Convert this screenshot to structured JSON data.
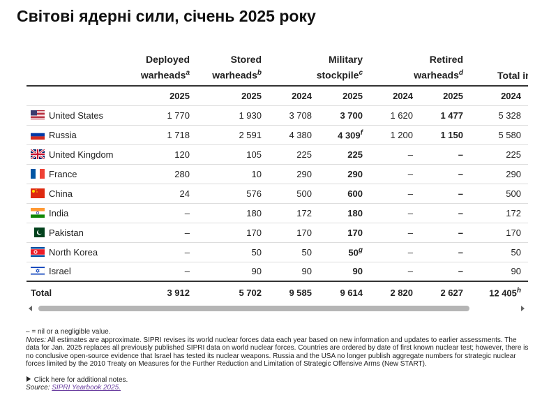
{
  "title": "Світові ядерні сили, січень 2025 року",
  "table": {
    "header": [
      {
        "text": "Deployed warheads",
        "note": "a"
      },
      {
        "text": "Stored warheads",
        "note": "b"
      },
      {
        "text": "Military stockpile",
        "note": "c"
      },
      {
        "text": "Retired warheads",
        "note": "d"
      },
      {
        "text": "Total in"
      }
    ],
    "years": [
      "2025",
      "2025",
      "2024",
      "2025",
      "2024",
      "2025",
      "2024"
    ],
    "rows": [
      {
        "country": "United States",
        "cells": [
          "1 770",
          "1 930",
          "3 708",
          "3 700",
          "1 620",
          "1 477",
          "5 328"
        ]
      },
      {
        "country": "Russia",
        "cells": [
          "1 718",
          "2 591",
          "4 380",
          {
            "text": "4 309",
            "note": "f"
          },
          "1 200",
          "1 150",
          "5 580"
        ]
      },
      {
        "country": "United Kingdom",
        "cells": [
          "120",
          "105",
          "225",
          "225",
          "–",
          "–",
          "225"
        ]
      },
      {
        "country": "France",
        "cells": [
          "280",
          "10",
          "290",
          "290",
          "–",
          "–",
          "290"
        ]
      },
      {
        "country": "China",
        "cells": [
          "24",
          "576",
          "500",
          "600",
          "–",
          "–",
          "500"
        ]
      },
      {
        "country": "India",
        "cells": [
          "–",
          "180",
          "172",
          "180",
          "–",
          "–",
          "172"
        ]
      },
      {
        "country": "Pakistan",
        "cells": [
          "–",
          "170",
          "170",
          "170",
          "–",
          "–",
          "170"
        ]
      },
      {
        "country": "North Korea",
        "cells": [
          "–",
          "50",
          "50",
          {
            "text": "50",
            "note": "g"
          },
          "–",
          "–",
          "50"
        ]
      },
      {
        "country": "Israel",
        "cells": [
          "–",
          "90",
          "90",
          "90",
          "–",
          "–",
          "90"
        ]
      }
    ],
    "total": {
      "label": "Total",
      "cells": [
        "3 912",
        "5 702",
        "9 585",
        "9 614",
        "2 820",
        "2 627",
        {
          "text": "12 405",
          "note": "h"
        }
      ]
    }
  },
  "notes": {
    "nil": "– = nil or a negligible value.",
    "label": "Notes:",
    "text": "All estimates are approximate. SIPRI revises its world nuclear forces data each year based on new information and updates to earlier assessments. The data for Jan. 2025 replaces all previously published SIPRI data on world nuclear forces. Countries are ordered by date of first known nuclear test; however, there is no conclusive open-source evidence that Israel has tested its nuclear weapons. Russia and the USA no longer publish aggregate numbers for strategic nuclear forces limited by the 2010 Treaty on Measures for the Further Reduction and Limitation of Strategic Offensive Arms (New START)."
  },
  "more": "Click here for additional notes.",
  "source": {
    "label": "Source:",
    "link": "SIPRI Yearbook 2025."
  }
}
